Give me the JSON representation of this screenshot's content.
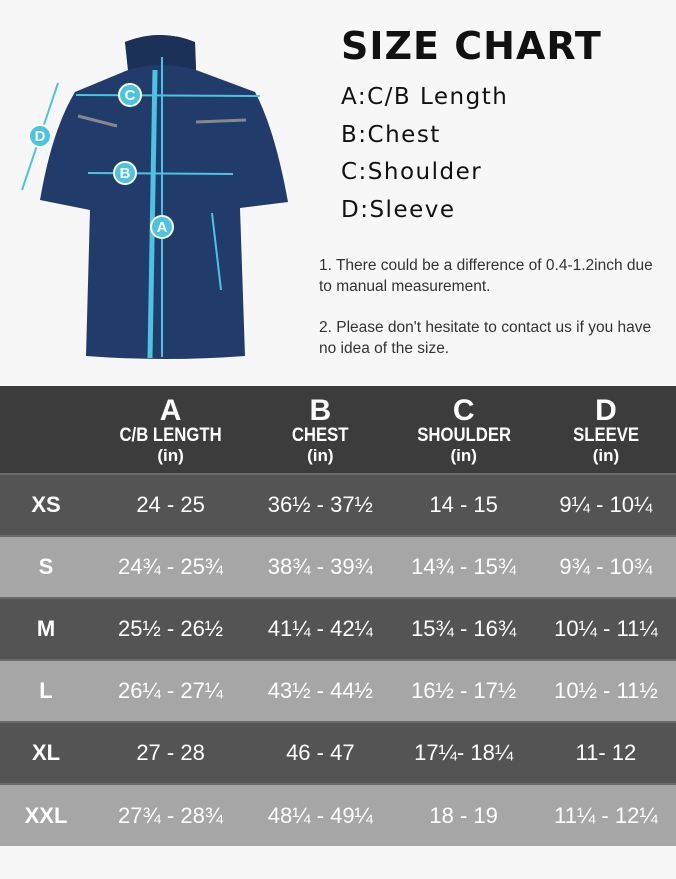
{
  "title": "SIZE CHART",
  "legend": [
    "A:C/B Length",
    "B:Chest",
    "C:Shoulder",
    "D:Sleeve"
  ],
  "notes": [
    "1. There could be a difference of 0.4-1.2inch due to manual measurement.",
    "2. Please don't hesitate to contact us if you have no idea of the size."
  ],
  "diagram": {
    "labels": [
      "A",
      "B",
      "C",
      "D"
    ],
    "jacket_color": "#213c6b",
    "accent": "#4cc4e0"
  },
  "table": {
    "headers": [
      {
        "letter": "A",
        "name": "C/B LENGTH",
        "unit": "(in)"
      },
      {
        "letter": "B",
        "name": "CHEST",
        "unit": "(in)"
      },
      {
        "letter": "C",
        "name": "SHOULDER",
        "unit": "(in)"
      },
      {
        "letter": "D",
        "name": "SLEEVE",
        "unit": "(in)"
      }
    ],
    "rows": [
      {
        "size": "XS",
        "values": [
          "24 - 25",
          "36½ - 37½",
          "14 - 15",
          "9¼ - 10¼"
        ]
      },
      {
        "size": "S",
        "values": [
          "24¾ - 25¾",
          "38¾ - 39¾",
          "14¾ - 15¾",
          "9¾ - 10¾"
        ]
      },
      {
        "size": "M",
        "values": [
          "25½ - 26½",
          "41¼ - 42¼",
          "15¾ - 16¾",
          "10¼ - 11¼"
        ]
      },
      {
        "size": "L",
        "values": [
          "26¼ - 27¼",
          "43½ - 44½",
          "16½ - 17½",
          "10½ - 11½"
        ]
      },
      {
        "size": "XL",
        "values": [
          "27 - 28",
          "46 - 47",
          "17¼- 18¼",
          "11- 12"
        ]
      },
      {
        "size": "XXL",
        "values": [
          "27¾ - 28¾",
          "48¼ - 49¼",
          "18 - 19",
          "11¼ - 12¼"
        ]
      }
    ]
  }
}
